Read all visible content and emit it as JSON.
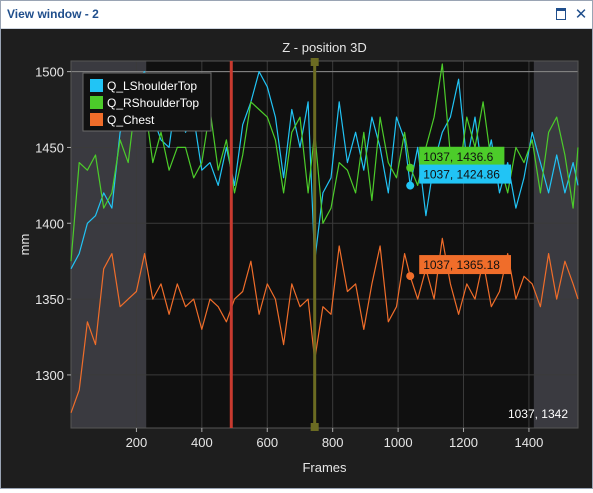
{
  "window": {
    "title": "View window - 2",
    "restore_icon": "restore-icon",
    "close_icon": "close-icon",
    "close_glyph": "✕"
  },
  "chart_data": {
    "type": "line",
    "title": "Z - position 3D",
    "xlabel": "Frames",
    "ylabel": "mm",
    "xlim": [
      0,
      1550
    ],
    "ylim": [
      1265,
      1507
    ],
    "x_ticks": [
      200,
      400,
      600,
      800,
      1000,
      1200,
      1400
    ],
    "y_ticks": [
      1300,
      1350,
      1400,
      1450,
      1500
    ],
    "grid": true,
    "legend_position": "top-left",
    "selection_range": [
      230,
      1415
    ],
    "red_marker_x": 490,
    "olive_marker_x": 745,
    "cursor_readout": "1037, 1342",
    "series": [
      {
        "name": "Q_LShoulderTop",
        "color": "#21c4f5",
        "x": [
          0,
          25,
          50,
          75,
          100,
          125,
          150,
          175,
          200,
          225,
          250,
          275,
          300,
          325,
          350,
          375,
          400,
          425,
          450,
          475,
          500,
          525,
          550,
          575,
          600,
          625,
          650,
          675,
          700,
          725,
          745,
          770,
          795,
          820,
          845,
          870,
          895,
          920,
          945,
          970,
          995,
          1020,
          1037,
          1060,
          1085,
          1110,
          1135,
          1160,
          1185,
          1210,
          1235,
          1260,
          1285,
          1310,
          1335,
          1360,
          1385,
          1410,
          1435,
          1460,
          1485,
          1510,
          1535,
          1550
        ],
        "y": [
          1370,
          1380,
          1400,
          1405,
          1420,
          1410,
          1460,
          1470,
          1495,
          1500,
          1470,
          1455,
          1450,
          1490,
          1460,
          1470,
          1435,
          1440,
          1425,
          1450,
          1425,
          1465,
          1480,
          1500,
          1490,
          1470,
          1430,
          1475,
          1450,
          1480,
          1375,
          1420,
          1430,
          1480,
          1440,
          1460,
          1435,
          1470,
          1450,
          1420,
          1470,
          1455,
          1425,
          1450,
          1405,
          1440,
          1460,
          1470,
          1495,
          1440,
          1470,
          1430,
          1455,
          1420,
          1440,
          1410,
          1430,
          1460,
          1440,
          1420,
          1445,
          1420,
          1440,
          1425
        ]
      },
      {
        "name": "Q_RShoulderTop",
        "color": "#4ccc2a",
        "x": [
          0,
          25,
          50,
          75,
          100,
          125,
          150,
          175,
          200,
          225,
          250,
          275,
          300,
          325,
          350,
          375,
          400,
          425,
          450,
          475,
          500,
          525,
          550,
          575,
          600,
          625,
          650,
          675,
          700,
          725,
          745,
          770,
          795,
          820,
          845,
          870,
          895,
          920,
          945,
          970,
          995,
          1020,
          1037,
          1060,
          1085,
          1110,
          1135,
          1160,
          1185,
          1210,
          1235,
          1260,
          1285,
          1310,
          1335,
          1360,
          1385,
          1410,
          1435,
          1460,
          1485,
          1510,
          1535,
          1550
        ],
        "y": [
          1375,
          1440,
          1435,
          1445,
          1410,
          1420,
          1455,
          1440,
          1485,
          1480,
          1440,
          1460,
          1435,
          1450,
          1450,
          1430,
          1440,
          1475,
          1435,
          1455,
          1420,
          1445,
          1480,
          1475,
          1470,
          1455,
          1420,
          1460,
          1470,
          1420,
          1460,
          1400,
          1410,
          1440,
          1435,
          1420,
          1460,
          1415,
          1470,
          1440,
          1430,
          1460,
          1437,
          1425,
          1450,
          1470,
          1505,
          1445,
          1430,
          1470,
          1450,
          1480,
          1440,
          1440,
          1420,
          1450,
          1440,
          1455,
          1420,
          1460,
          1470,
          1445,
          1410,
          1450
        ]
      },
      {
        "name": "Q_Chest",
        "color": "#f06d2a",
        "x": [
          0,
          25,
          50,
          75,
          100,
          125,
          150,
          175,
          200,
          225,
          250,
          275,
          300,
          325,
          350,
          375,
          400,
          425,
          450,
          475,
          500,
          525,
          550,
          575,
          600,
          625,
          650,
          675,
          700,
          725,
          745,
          770,
          795,
          820,
          845,
          870,
          895,
          920,
          945,
          970,
          995,
          1020,
          1037,
          1060,
          1085,
          1110,
          1135,
          1160,
          1185,
          1210,
          1235,
          1260,
          1285,
          1310,
          1335,
          1360,
          1385,
          1410,
          1435,
          1460,
          1485,
          1510,
          1535,
          1550
        ],
        "y": [
          1275,
          1290,
          1335,
          1320,
          1370,
          1380,
          1345,
          1350,
          1355,
          1380,
          1350,
          1360,
          1340,
          1360,
          1345,
          1350,
          1330,
          1350,
          1345,
          1335,
          1350,
          1355,
          1375,
          1340,
          1360,
          1350,
          1320,
          1360,
          1345,
          1350,
          1310,
          1345,
          1340,
          1385,
          1355,
          1360,
          1330,
          1360,
          1385,
          1335,
          1345,
          1380,
          1365,
          1350,
          1370,
          1350,
          1390,
          1360,
          1340,
          1360,
          1350,
          1375,
          1345,
          1355,
          1380,
          1350,
          1365,
          1360,
          1345,
          1380,
          1350,
          1375,
          1360,
          1350
        ]
      }
    ],
    "markers": [
      {
        "series": "Q_RShoulderTop",
        "x": 1037,
        "y": 1436.6,
        "label": "1037, 1436.6",
        "color": "#4ccc2a"
      },
      {
        "series": "Q_LShoulderTop",
        "x": 1037,
        "y": 1424.86,
        "label": "1037, 1424.86",
        "color": "#21c4f5"
      },
      {
        "series": "Q_Chest",
        "x": 1037,
        "y": 1365.18,
        "label": "1037, 1365.18",
        "color": "#f06d2a"
      }
    ]
  }
}
